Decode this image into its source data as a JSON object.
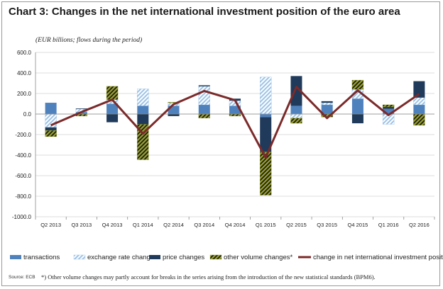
{
  "title": "Chart 3: Changes in the net international investment position of the euro area",
  "subtitle": "(EUR billions; flows during the period)",
  "source": "Source: ECB",
  "footnote": "*) Other volume changes may partly account for breaks in the series arising from the introduction of the new statistical standards (BPM6).",
  "colors": {
    "transactions": "#4f81bd",
    "exchange_rate_changes": "#9dc3e6",
    "price_changes": "#1f3a5a",
    "other_volume_changes": "#9aa32a",
    "net_iip_line": "#7b2a2a",
    "gridline": "#d0d0d0",
    "axis": "#8a8a8a"
  },
  "chart_data": {
    "type": "bar",
    "stacked": true,
    "categories": [
      "Q2 2013",
      "Q3 2013",
      "Q4 2013",
      "Q1 2014",
      "Q2 2014",
      "Q3 2014",
      "Q4 2014",
      "Q1 2015",
      "Q2 2015",
      "Q3 2015",
      "Q4 2015",
      "Q1 2016",
      "Q2 2016"
    ],
    "series": [
      {
        "name": "transactions",
        "kind": "bar",
        "pattern": "solid",
        "color": "#4f81bd",
        "values": [
          110,
          20,
          100,
          80,
          80,
          90,
          80,
          -30,
          80,
          90,
          150,
          50,
          90
        ]
      },
      {
        "name": "exchange rate changes",
        "kind": "bar",
        "pattern": "diagonal",
        "color": "#9dc3e6",
        "values": [
          -130,
          30,
          40,
          165,
          30,
          180,
          50,
          360,
          -40,
          20,
          90,
          -100,
          70
        ]
      },
      {
        "name": "price changes",
        "kind": "bar",
        "pattern": "solid",
        "color": "#1f3a5a",
        "values": [
          -30,
          5,
          -80,
          -100,
          -20,
          10,
          20,
          -340,
          290,
          15,
          -90,
          20,
          160
        ]
      },
      {
        "name": "other volume changes*",
        "kind": "bar",
        "pattern": "diagonal",
        "color": "#9aa32a",
        "values": [
          -60,
          -20,
          130,
          -345,
          5,
          -40,
          -20,
          -420,
          -50,
          -30,
          90,
          20,
          -110
        ]
      },
      {
        "name": "change in net international investment position",
        "kind": "line",
        "color": "#7b2a2a",
        "values": [
          -110,
          20,
          140,
          -190,
          95,
          225,
          135,
          -425,
          265,
          -40,
          230,
          -10,
          195
        ]
      }
    ],
    "ylim": [
      -1000,
      600
    ],
    "yticks": [
      "600.0",
      "400.0",
      "200.0",
      "0.0",
      "-200.0",
      "-400.0",
      "-600.0",
      "-800.0",
      "-1000.0"
    ],
    "ytick_values": [
      600,
      400,
      200,
      0,
      -200,
      -400,
      -600,
      -800,
      -1000
    ],
    "grid": true,
    "legend_position": "bottom"
  }
}
